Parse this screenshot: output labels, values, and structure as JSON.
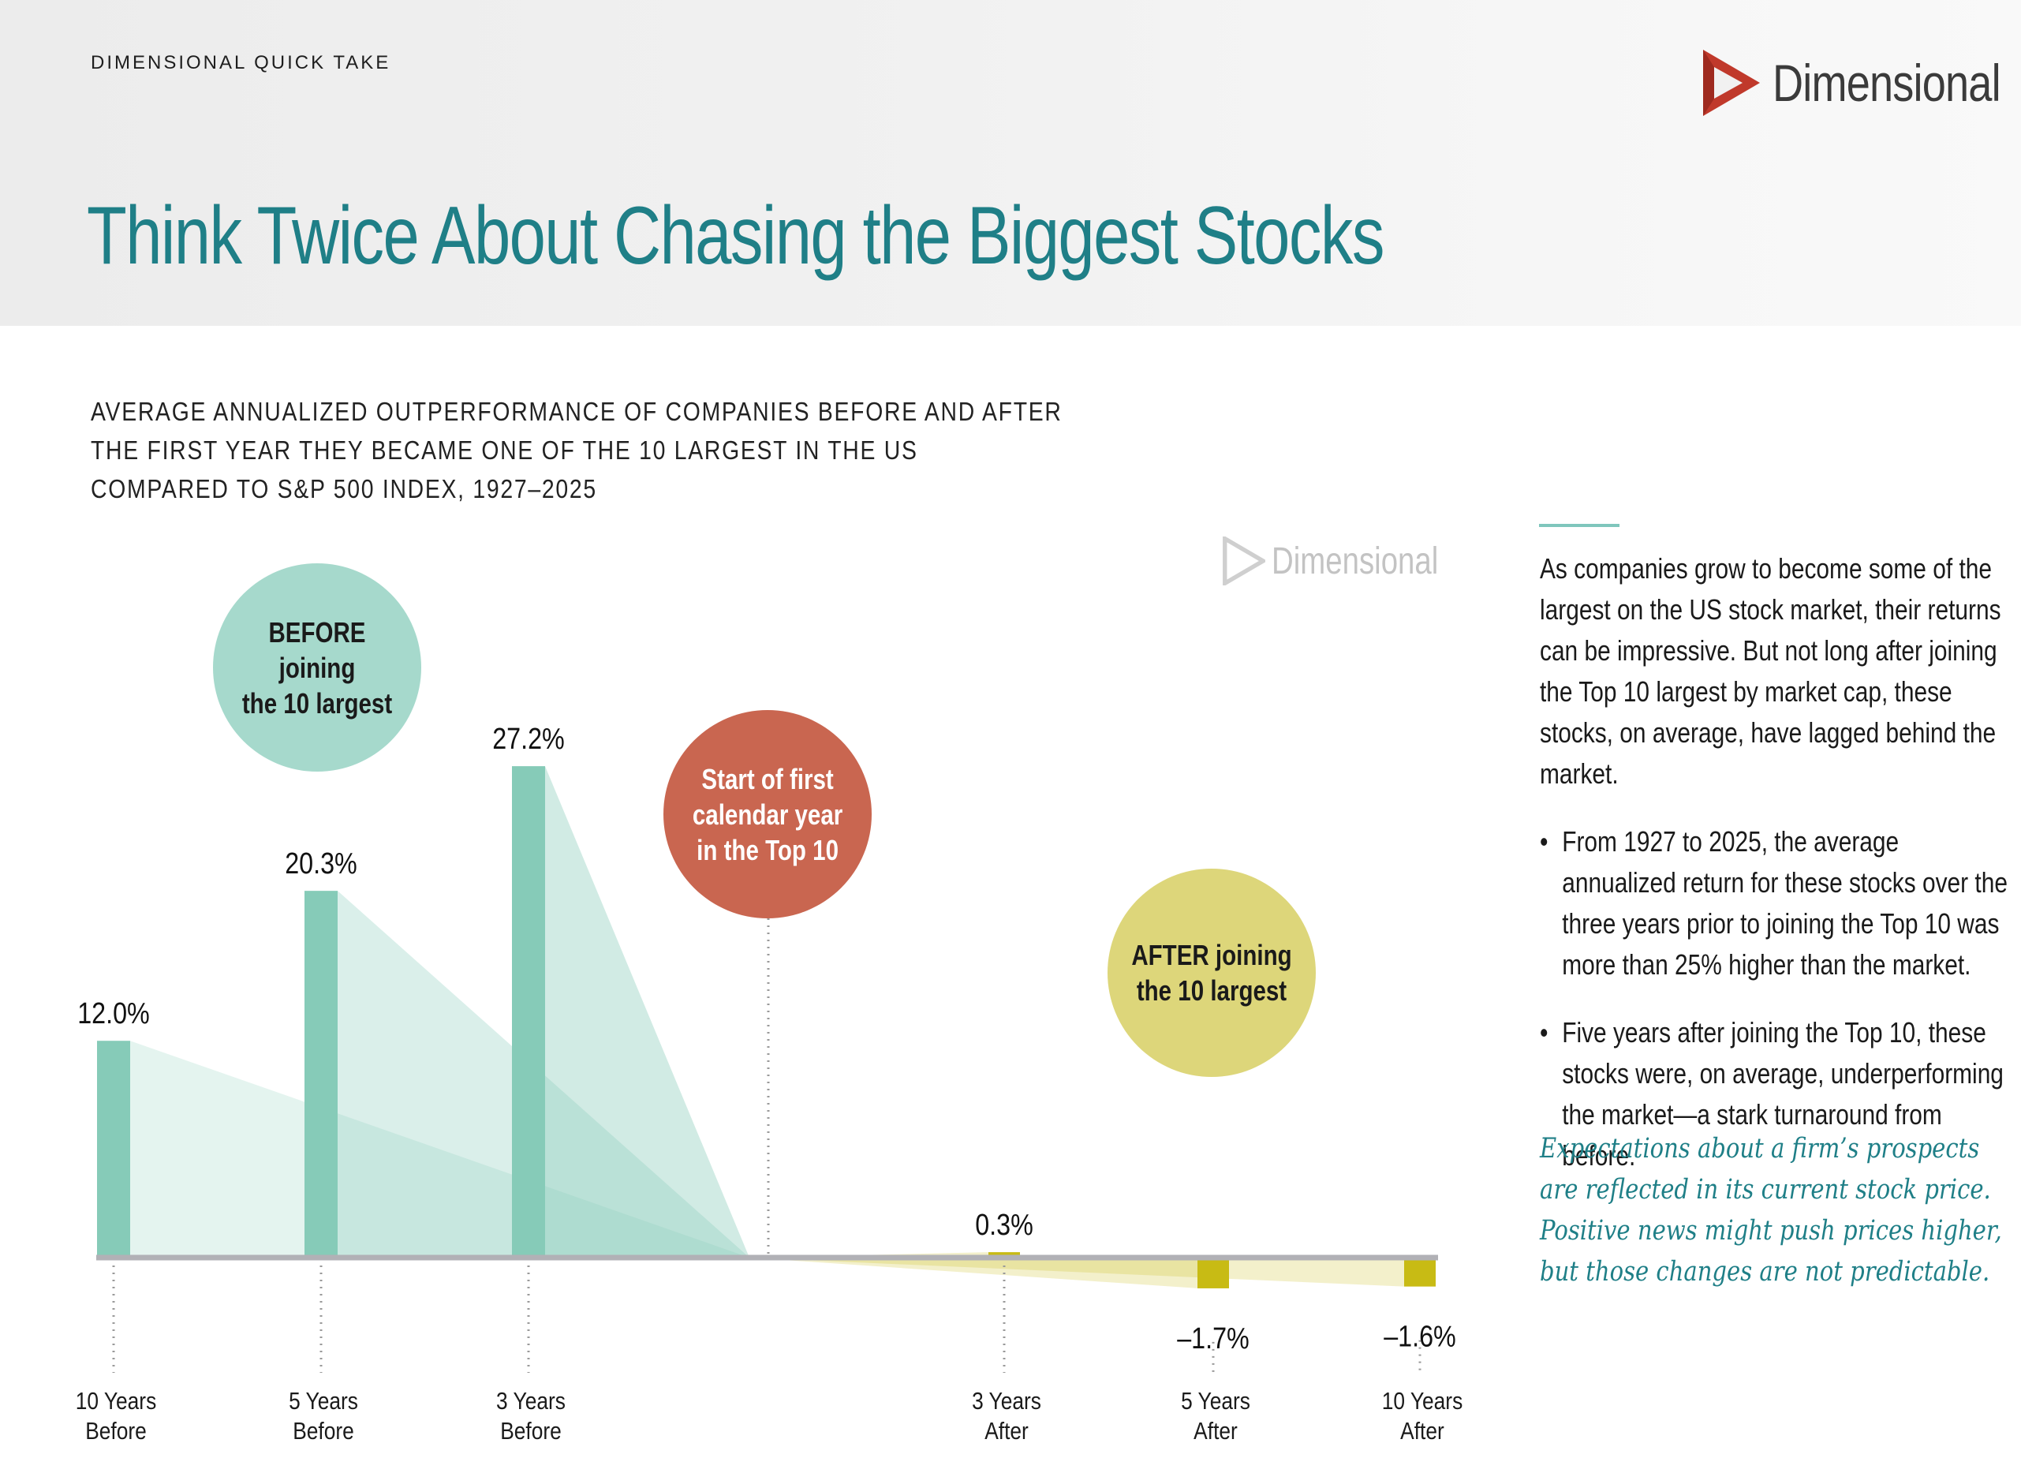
{
  "header": {
    "kicker": "DIMENSIONAL QUICK TAKE",
    "logo_text": "Dimensional",
    "title": "Think Twice About Chasing the Biggest Stocks"
  },
  "chart_data": {
    "type": "bar",
    "title": "AVERAGE ANNUALIZED OUTPERFORMANCE OF COMPANIES BEFORE AND AFTER THE FIRST YEAR THEY BECAME ONE OF THE 10 LARGEST IN THE US COMPARED TO S&P 500 INDEX, 1927–2025",
    "title_lines": [
      "AVERAGE ANNUALIZED OUTPERFORMANCE OF COMPANIES BEFORE AND AFTER",
      "THE FIRST YEAR THEY BECAME ONE OF THE 10 LARGEST IN THE US",
      "COMPARED TO S&P 500 INDEX, 1927–2025"
    ],
    "categories": [
      [
        "10 Years",
        "Before"
      ],
      [
        "5 Years",
        "Before"
      ],
      [
        "3 Years",
        "Before"
      ],
      [
        "3 Years",
        "After"
      ],
      [
        "5 Years",
        "After"
      ],
      [
        "10 Years",
        "After"
      ]
    ],
    "values": [
      12.0,
      20.3,
      27.2,
      0.3,
      -1.7,
      -1.6
    ],
    "value_labels": [
      "12.0%",
      "20.3%",
      "27.2%",
      "0.3%",
      "–1.7%",
      "–1.6%"
    ],
    "xlabel": "",
    "ylabel": "",
    "ylim": [
      -2,
      28
    ],
    "watermark": "Dimensional",
    "colors": {
      "before_bar": "#86cbb8",
      "after_bar": "#c8bb14",
      "axis": "#b1b1b6",
      "start_bubble": "#c96650",
      "before_bubble": "#a6d9cc",
      "after_bubble": "#ddd67a"
    },
    "annotations": {
      "before": "BEFORE joining\nthe 10 largest",
      "start": "Start of first\ncalendar year\nin the Top 10",
      "after": "AFTER joining\nthe 10 largest"
    }
  },
  "sidebar": {
    "intro": "As companies grow to become some of the largest on the US stock market, their returns can be impressive. But not long after joining the Top 10 largest by market cap, these stocks, on average, have lagged behind the market.",
    "bullets": [
      "From 1927 to 2025, the average annualized return for these stocks over the three years prior to joining the Top 10 was more than 25% higher than the market.",
      "Five years after joining the Top 10, these stocks were, on average, underperforming the market—a stark turnaround from before."
    ],
    "quote": "Expectations about a firm’s prospects are reflected in its current stock price. Positive news might push prices higher, but those changes are not predictable."
  }
}
